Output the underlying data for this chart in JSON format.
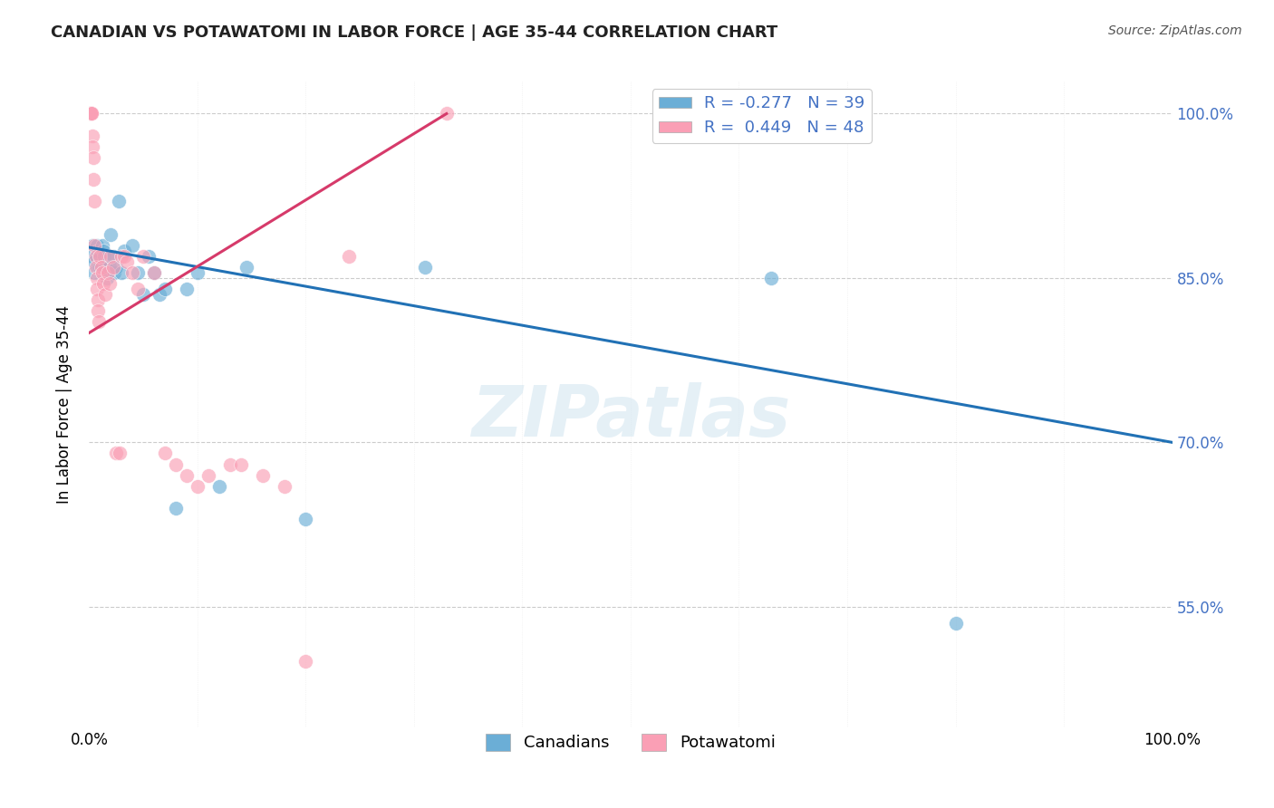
{
  "title": "CANADIAN VS POTAWATOMI IN LABOR FORCE | AGE 35-44 CORRELATION CHART",
  "source": "Source: ZipAtlas.com",
  "ylabel": "In Labor Force | Age 35-44",
  "watermark": "ZIPatlas",
  "legend_r_canadian": "-0.277",
  "legend_n_canadian": "39",
  "legend_r_potawatomi": "0.449",
  "legend_n_potawatomi": "48",
  "xlim": [
    0.0,
    1.0
  ],
  "ylim": [
    0.44,
    1.03
  ],
  "ytick_positions": [
    0.55,
    0.7,
    0.85,
    1.0
  ],
  "ytick_labels": [
    "55.0%",
    "70.0%",
    "85.0%",
    "100.0%"
  ],
  "canadian_color": "#6baed6",
  "potawatomi_color": "#fa9fb5",
  "canadian_line_color": "#2171b5",
  "potawatomi_line_color": "#d63a6a",
  "canadian_x": [
    0.003,
    0.003,
    0.005,
    0.005,
    0.007,
    0.008,
    0.008,
    0.01,
    0.01,
    0.012,
    0.013,
    0.014,
    0.015,
    0.016,
    0.018,
    0.019,
    0.02,
    0.022,
    0.023,
    0.025,
    0.027,
    0.03,
    0.032,
    0.04,
    0.045,
    0.05,
    0.055,
    0.06,
    0.065,
    0.07,
    0.08,
    0.09,
    0.1,
    0.12,
    0.145,
    0.2,
    0.31,
    0.63,
    0.8
  ],
  "canadian_y": [
    0.88,
    0.87,
    0.865,
    0.855,
    0.88,
    0.875,
    0.86,
    0.87,
    0.86,
    0.88,
    0.875,
    0.87,
    0.86,
    0.85,
    0.87,
    0.86,
    0.89,
    0.87,
    0.855,
    0.86,
    0.92,
    0.855,
    0.875,
    0.88,
    0.855,
    0.835,
    0.87,
    0.855,
    0.835,
    0.84,
    0.64,
    0.84,
    0.855,
    0.66,
    0.86,
    0.63,
    0.86,
    0.85,
    0.535
  ],
  "potawatomi_x": [
    0.001,
    0.001,
    0.001,
    0.002,
    0.002,
    0.003,
    0.003,
    0.004,
    0.004,
    0.005,
    0.005,
    0.006,
    0.006,
    0.007,
    0.007,
    0.008,
    0.008,
    0.009,
    0.01,
    0.011,
    0.012,
    0.013,
    0.015,
    0.017,
    0.019,
    0.02,
    0.022,
    0.025,
    0.028,
    0.03,
    0.032,
    0.035,
    0.04,
    0.045,
    0.05,
    0.06,
    0.07,
    0.08,
    0.09,
    0.1,
    0.11,
    0.13,
    0.14,
    0.16,
    0.18,
    0.2,
    0.24,
    0.33
  ],
  "potawatomi_y": [
    1.0,
    1.0,
    1.0,
    1.0,
    1.0,
    0.98,
    0.97,
    0.96,
    0.94,
    0.92,
    0.88,
    0.87,
    0.86,
    0.85,
    0.84,
    0.83,
    0.82,
    0.81,
    0.87,
    0.86,
    0.855,
    0.845,
    0.835,
    0.855,
    0.845,
    0.87,
    0.86,
    0.69,
    0.69,
    0.87,
    0.87,
    0.865,
    0.855,
    0.84,
    0.87,
    0.855,
    0.69,
    0.68,
    0.67,
    0.66,
    0.67,
    0.68,
    0.68,
    0.67,
    0.66,
    0.5,
    0.87,
    1.0
  ],
  "background_color": "#ffffff",
  "grid_color": "#cccccc",
  "canadian_line_x0": 0.0,
  "canadian_line_y0": 0.878,
  "canadian_line_x1": 1.0,
  "canadian_line_y1": 0.7,
  "potawatomi_line_x0": 0.0,
  "potawatomi_line_y0": 0.8,
  "potawatomi_line_x1": 0.33,
  "potawatomi_line_y1": 1.0
}
